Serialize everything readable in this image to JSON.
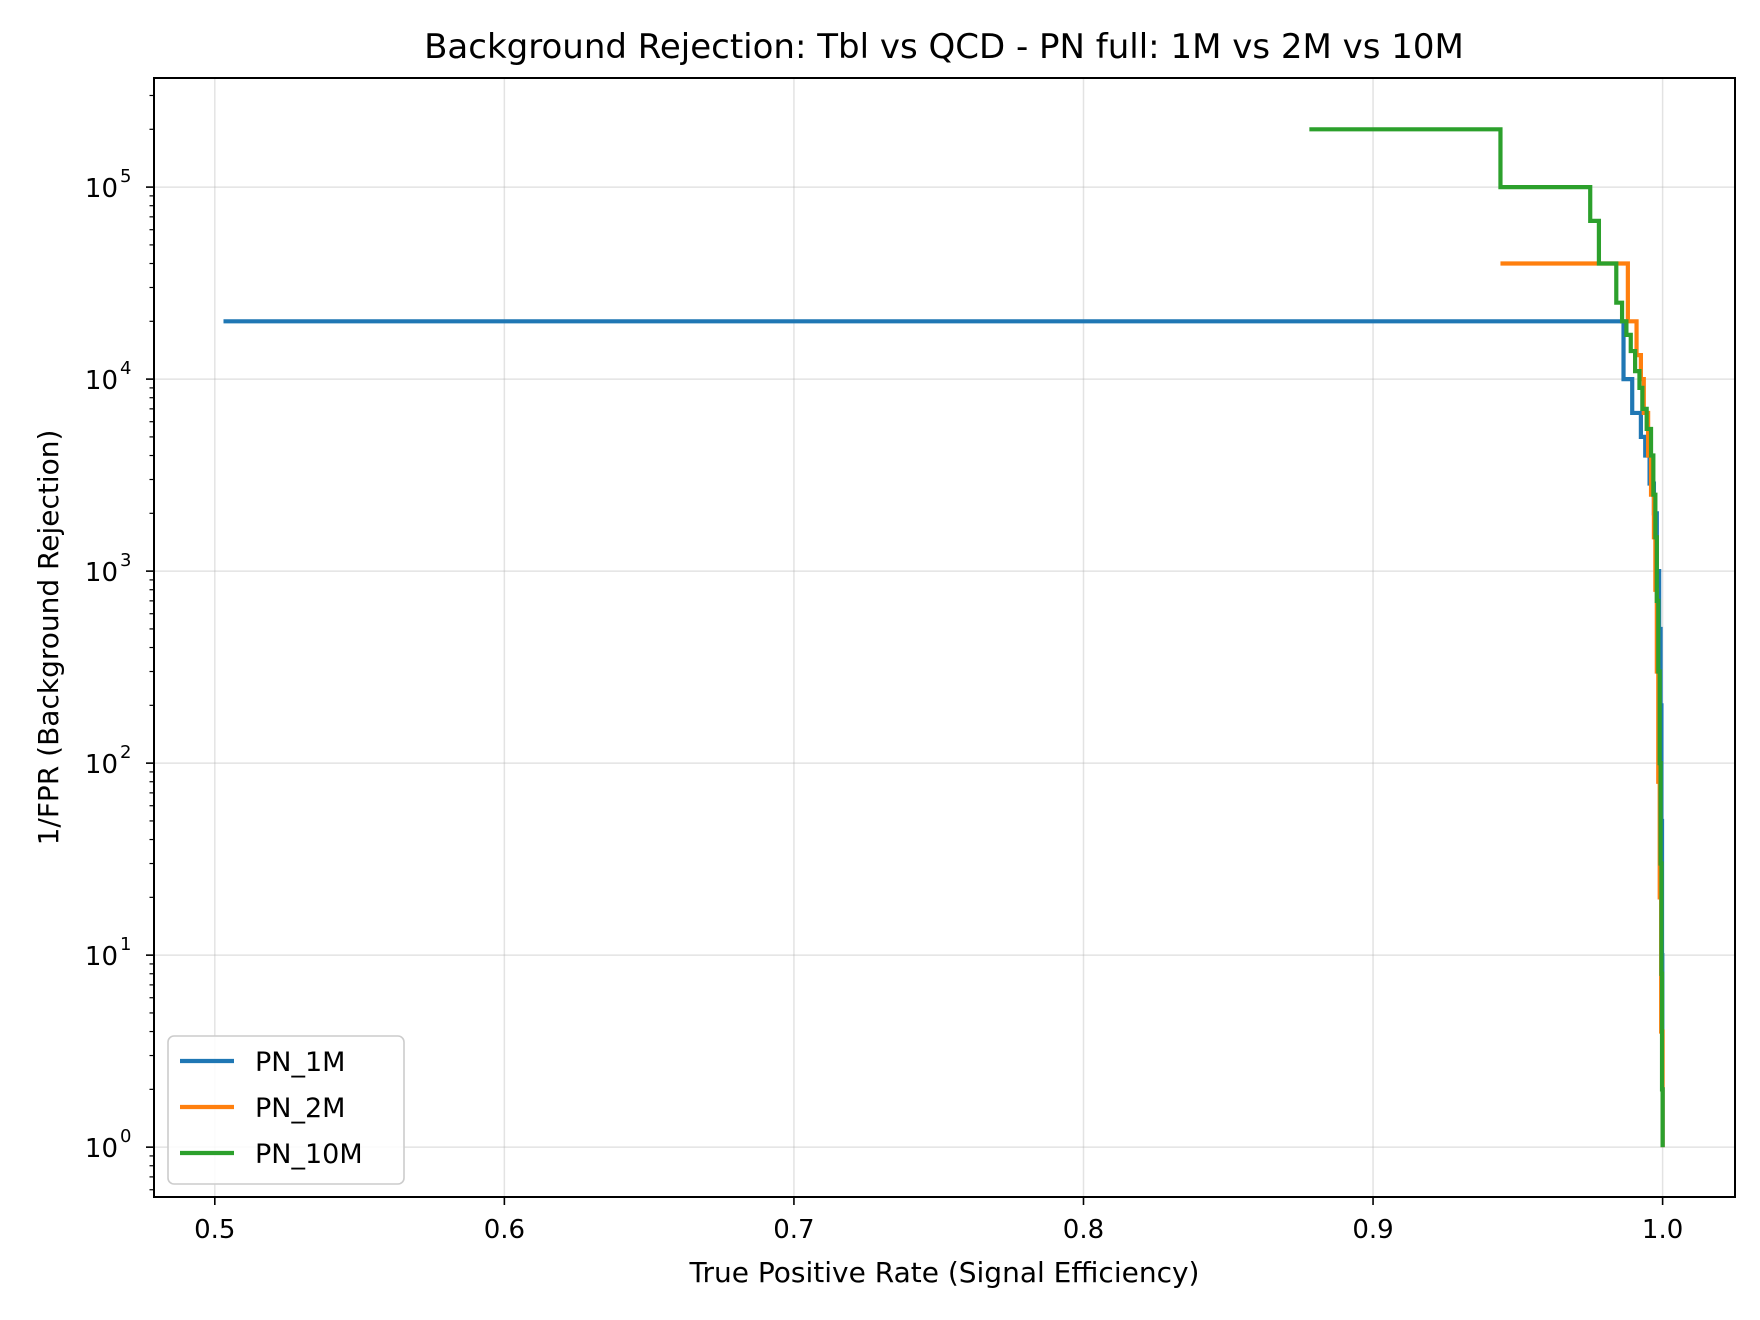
{
  "chart_data": {
    "type": "line",
    "title": "Background Rejection: Tbl vs QCD - PN full: 1M vs 2M vs 10M",
    "xlabel": "True Positive Rate (Signal Efficiency)",
    "ylabel": "1/FPR (Background Rejection)",
    "xlim": [
      0.479,
      1.025
    ],
    "ylim": [
      0.55,
      370000
    ],
    "yscale": "log",
    "grid": true,
    "legend_position": "lower-left",
    "x_ticks": [
      {
        "value": 0.5,
        "label": "0.5"
      },
      {
        "value": 0.6,
        "label": "0.6"
      },
      {
        "value": 0.7,
        "label": "0.7"
      },
      {
        "value": 0.8,
        "label": "0.8"
      },
      {
        "value": 0.9,
        "label": "0.9"
      },
      {
        "value": 1.0,
        "label": "1.0"
      }
    ],
    "y_ticks": [
      {
        "value": 1,
        "base": "10",
        "exp": "0"
      },
      {
        "value": 10,
        "base": "10",
        "exp": "1"
      },
      {
        "value": 100,
        "base": "10",
        "exp": "2"
      },
      {
        "value": 1000,
        "base": "10",
        "exp": "3"
      },
      {
        "value": 10000,
        "base": "10",
        "exp": "4"
      },
      {
        "value": 100000,
        "base": "10",
        "exp": "5"
      }
    ],
    "series": [
      {
        "name": "PN_1M",
        "color": "#1f77b4",
        "points": [
          [
            0.503,
            20000
          ],
          [
            0.9865,
            20000
          ],
          [
            0.9865,
            10000
          ],
          [
            0.9895,
            10000
          ],
          [
            0.9895,
            6667
          ],
          [
            0.9925,
            6667
          ],
          [
            0.9925,
            5000
          ],
          [
            0.994,
            5000
          ],
          [
            0.994,
            4000
          ],
          [
            0.9955,
            4000
          ],
          [
            0.9955,
            2857
          ],
          [
            0.997,
            2857
          ],
          [
            0.997,
            2000
          ],
          [
            0.998,
            2000
          ],
          [
            0.998,
            1000
          ],
          [
            0.9988,
            1000
          ],
          [
            0.9988,
            500
          ],
          [
            0.9993,
            500
          ],
          [
            0.9993,
            200
          ],
          [
            0.9996,
            200
          ],
          [
            0.9996,
            50
          ],
          [
            0.9998,
            50
          ],
          [
            0.9998,
            10
          ],
          [
            0.9999,
            10
          ],
          [
            0.9999,
            2
          ],
          [
            1.0,
            2
          ],
          [
            1.0,
            1
          ]
        ]
      },
      {
        "name": "PN_2M",
        "color": "#ff7f0e",
        "points": [
          [
            0.944,
            40000
          ],
          [
            0.988,
            40000
          ],
          [
            0.988,
            20000
          ],
          [
            0.991,
            20000
          ],
          [
            0.991,
            13333
          ],
          [
            0.9925,
            13333
          ],
          [
            0.9925,
            10000
          ],
          [
            0.9935,
            10000
          ],
          [
            0.9935,
            6667
          ],
          [
            0.995,
            6667
          ],
          [
            0.995,
            4000
          ],
          [
            0.996,
            4000
          ],
          [
            0.996,
            2500
          ],
          [
            0.997,
            2500
          ],
          [
            0.997,
            1500
          ],
          [
            0.9975,
            1500
          ],
          [
            0.9975,
            800
          ],
          [
            0.998,
            800
          ],
          [
            0.998,
            300
          ],
          [
            0.9985,
            300
          ],
          [
            0.9985,
            80
          ],
          [
            0.999,
            80
          ],
          [
            0.999,
            20
          ],
          [
            0.9995,
            20
          ],
          [
            0.9995,
            4
          ],
          [
            1.0,
            4
          ],
          [
            1.0,
            1
          ]
        ]
      },
      {
        "name": "PN_10M",
        "color": "#2ca02c",
        "points": [
          [
            0.878,
            200000
          ],
          [
            0.944,
            200000
          ],
          [
            0.944,
            100000
          ],
          [
            0.975,
            100000
          ],
          [
            0.975,
            66667
          ],
          [
            0.978,
            66667
          ],
          [
            0.978,
            40000
          ],
          [
            0.984,
            40000
          ],
          [
            0.984,
            25000
          ],
          [
            0.986,
            25000
          ],
          [
            0.986,
            20000
          ],
          [
            0.9875,
            20000
          ],
          [
            0.9875,
            17000
          ],
          [
            0.989,
            17000
          ],
          [
            0.989,
            14000
          ],
          [
            0.9905,
            14000
          ],
          [
            0.9905,
            11000
          ],
          [
            0.992,
            11000
          ],
          [
            0.992,
            9000
          ],
          [
            0.993,
            9000
          ],
          [
            0.993,
            7000
          ],
          [
            0.9945,
            7000
          ],
          [
            0.9945,
            5500
          ],
          [
            0.996,
            5500
          ],
          [
            0.996,
            4000
          ],
          [
            0.9968,
            4000
          ],
          [
            0.9968,
            2500
          ],
          [
            0.9975,
            2500
          ],
          [
            0.9975,
            1500
          ],
          [
            0.998,
            1500
          ],
          [
            0.998,
            700
          ],
          [
            0.9985,
            700
          ],
          [
            0.9985,
            300
          ],
          [
            0.999,
            300
          ],
          [
            0.999,
            100
          ],
          [
            0.9993,
            100
          ],
          [
            0.9993,
            30
          ],
          [
            0.9996,
            30
          ],
          [
            0.9996,
            8
          ],
          [
            0.9998,
            8
          ],
          [
            0.9998,
            2
          ],
          [
            1.0,
            2
          ],
          [
            1.0,
            1
          ]
        ]
      }
    ]
  }
}
